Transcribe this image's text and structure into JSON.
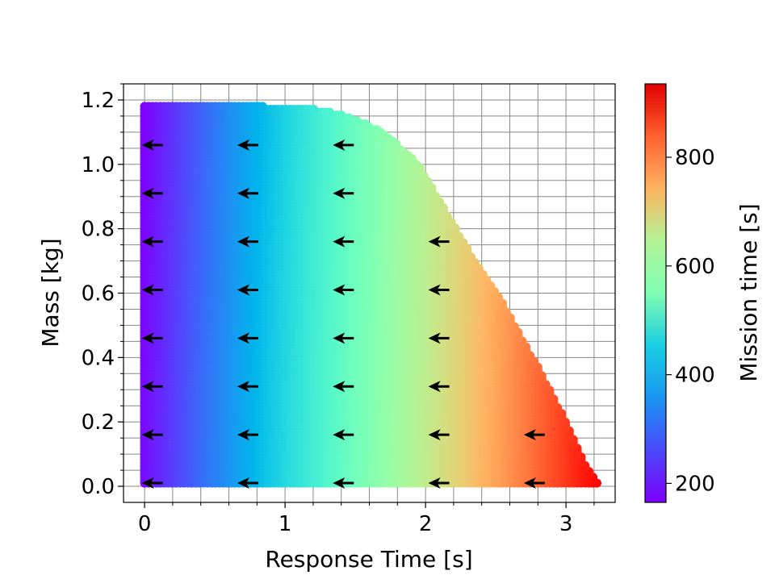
{
  "chart_data": {
    "type": "scatter",
    "title": "",
    "xlabel": "Response Time [s]",
    "ylabel": "Mass [kg]",
    "xlim": [
      -0.15,
      3.35
    ],
    "ylim": [
      -0.05,
      1.25
    ],
    "x_ticks": [
      0,
      1,
      2,
      3
    ],
    "y_ticks": [
      0.0,
      0.2,
      0.4,
      0.6,
      0.8,
      1.0,
      1.2
    ],
    "x_tick_labels": [
      "0",
      "1",
      "2",
      "3"
    ],
    "y_tick_labels": [
      "0.0",
      "0.2",
      "0.4",
      "0.6",
      "0.8",
      "1.0",
      "1.2"
    ],
    "grid": true,
    "minor_grid": true,
    "scatter_region": {
      "y_top": 1.18,
      "y_bottom": 0.01,
      "x_left": 0.0,
      "boundary": [
        [
          0.0,
          1.18
        ],
        [
          0.85,
          1.18
        ],
        [
          1.25,
          1.17
        ],
        [
          1.45,
          1.15
        ],
        [
          1.7,
          1.1
        ],
        [
          1.95,
          1.0
        ],
        [
          2.15,
          0.85
        ],
        [
          2.35,
          0.7
        ],
        [
          2.55,
          0.57
        ],
        [
          2.7,
          0.45
        ],
        [
          2.85,
          0.33
        ],
        [
          3.0,
          0.2
        ],
        [
          3.12,
          0.08
        ],
        [
          3.22,
          0.01
        ]
      ]
    },
    "colorbar": {
      "label": "Mission time [s]",
      "min": 165,
      "max": 935,
      "ticks": [
        200,
        400,
        600,
        800
      ],
      "tick_labels": [
        "200",
        "400",
        "600",
        "800"
      ],
      "colormap": "rainbow"
    },
    "arrows": {
      "direction": "negative-x",
      "points": [
        {
          "x": -0.02,
          "y": 1.06
        },
        {
          "x": 0.66,
          "y": 1.06
        },
        {
          "x": 1.34,
          "y": 1.06
        },
        {
          "x": -0.02,
          "y": 0.91
        },
        {
          "x": 0.66,
          "y": 0.91
        },
        {
          "x": 1.34,
          "y": 0.91
        },
        {
          "x": -0.02,
          "y": 0.76
        },
        {
          "x": 0.66,
          "y": 0.76
        },
        {
          "x": 1.34,
          "y": 0.76
        },
        {
          "x": 2.02,
          "y": 0.76
        },
        {
          "x": -0.02,
          "y": 0.61
        },
        {
          "x": 0.66,
          "y": 0.61
        },
        {
          "x": 1.34,
          "y": 0.61
        },
        {
          "x": 2.02,
          "y": 0.61
        },
        {
          "x": -0.02,
          "y": 0.46
        },
        {
          "x": 0.66,
          "y": 0.46
        },
        {
          "x": 1.34,
          "y": 0.46
        },
        {
          "x": 2.02,
          "y": 0.46
        },
        {
          "x": -0.02,
          "y": 0.31
        },
        {
          "x": 0.66,
          "y": 0.31
        },
        {
          "x": 1.34,
          "y": 0.31
        },
        {
          "x": 2.02,
          "y": 0.31
        },
        {
          "x": -0.02,
          "y": 0.16
        },
        {
          "x": 0.66,
          "y": 0.16
        },
        {
          "x": 1.34,
          "y": 0.16
        },
        {
          "x": 2.02,
          "y": 0.16
        },
        {
          "x": 2.7,
          "y": 0.16
        },
        {
          "x": -0.02,
          "y": 0.01
        },
        {
          "x": 0.66,
          "y": 0.01
        },
        {
          "x": 1.34,
          "y": 0.01
        },
        {
          "x": 2.02,
          "y": 0.01
        },
        {
          "x": 2.7,
          "y": 0.01
        }
      ]
    }
  }
}
